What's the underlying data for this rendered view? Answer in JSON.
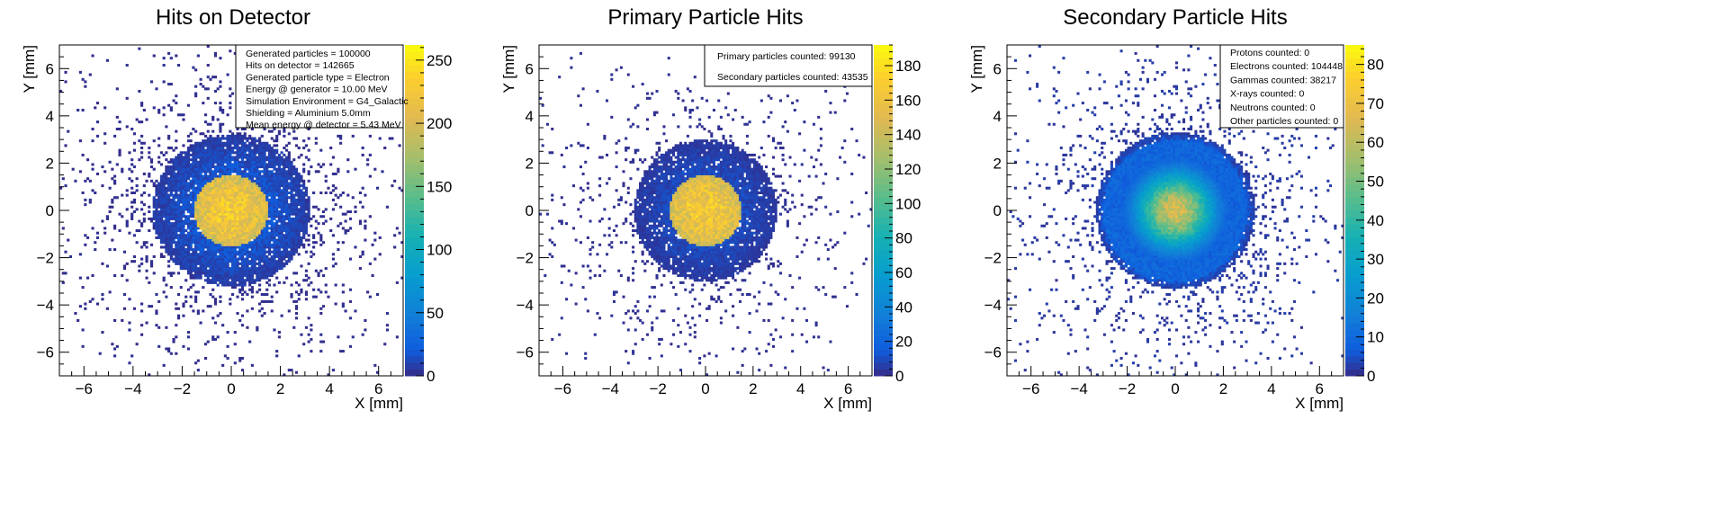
{
  "chart_data": [
    {
      "type": "heatmap",
      "title": "Hits on Detector",
      "xlabel": "X [mm]",
      "ylabel": "Y [mm]",
      "xlim": [
        -7,
        7
      ],
      "ylim": [
        -7,
        7
      ],
      "x_ticks": [
        -6,
        -4,
        -2,
        0,
        2,
        4,
        6
      ],
      "y_ticks": [
        -6,
        -4,
        -2,
        0,
        2,
        4,
        6
      ],
      "zlim": [
        0,
        262
      ],
      "z_ticks": [
        0,
        50,
        100,
        150,
        200,
        250
      ],
      "core_radius": 1.5,
      "core_peak": 225,
      "halo_radius": 3.2,
      "halo_level": 18,
      "outlier_density": 0.055,
      "stats": [
        "Generated particles = 100000",
        "Hits on detector = 142665",
        "Generated particle type = Electron",
        "Energy @ generator = 10.00 MeV",
        "Simulation Environment = G4_Galactic",
        "Shielding = Aluminium 5.0mm",
        "Mean energy @ detector = 5.43 MeV"
      ]
    },
    {
      "type": "heatmap",
      "title": "Primary Particle Hits",
      "xlabel": "X [mm]",
      "ylabel": "Y [mm]",
      "xlim": [
        -7,
        7
      ],
      "ylim": [
        -7,
        7
      ],
      "x_ticks": [
        -6,
        -4,
        -2,
        0,
        2,
        4,
        6
      ],
      "y_ticks": [
        -6,
        -4,
        -2,
        0,
        2,
        4,
        6
      ],
      "zlim": [
        0,
        192
      ],
      "z_ticks": [
        0,
        20,
        40,
        60,
        80,
        100,
        120,
        140,
        160,
        180
      ],
      "core_radius": 1.5,
      "core_peak": 165,
      "halo_radius": 3.0,
      "halo_level": 10,
      "outlier_density": 0.035,
      "stats": [
        "Primary particles counted: 99130",
        "Secondary particles counted: 43535"
      ]
    },
    {
      "type": "heatmap",
      "title": "Secondary Particle Hits",
      "xlabel": "X [mm]",
      "ylabel": "Y [mm]",
      "xlim": [
        -7,
        7
      ],
      "ylim": [
        -7,
        7
      ],
      "x_ticks": [
        -6,
        -4,
        -2,
        0,
        2,
        4,
        6
      ],
      "y_ticks": [
        -6,
        -4,
        -2,
        0,
        2,
        4,
        6
      ],
      "zlim": [
        0,
        85
      ],
      "z_ticks": [
        0,
        10,
        20,
        30,
        40,
        50,
        60,
        70,
        80
      ],
      "core_radius": 3.0,
      "core_peak": 65,
      "halo_radius": 3.3,
      "halo_level": 6,
      "outlier_density": 0.05,
      "stats": [
        "Protons counted: 0",
        "Electrons counted: 104448",
        "Gammas counted: 38217",
        "X-rays counted: 0",
        "Neutrons counted: 0",
        "Other particles counted: 0"
      ]
    }
  ]
}
